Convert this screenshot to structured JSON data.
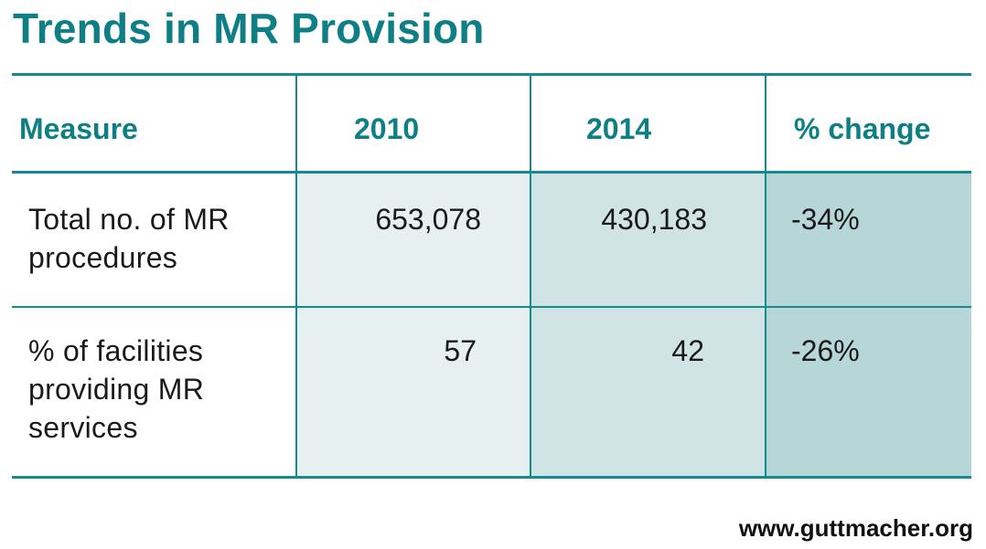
{
  "title": "Trends in MR Provision",
  "credit": "www.guttmacher.org",
  "colors": {
    "accent": "#0f7f86",
    "rule": "#168a91",
    "col_2010_bg": "#e6f0f1",
    "col_2014_bg": "#d0e3e5",
    "col_change_bg": "#b7d6d8"
  },
  "chart_data": {
    "type": "table",
    "title": "Trends in MR Provision",
    "columns": [
      "Measure",
      "2010",
      "2014",
      "% change"
    ],
    "rows": [
      {
        "measure": "Total no. of MR procedures",
        "y2010": "653,078",
        "y2014": "430,183",
        "change": "-34%"
      },
      {
        "measure": "% of facilities providing MR services",
        "y2010": "57",
        "y2014": "42",
        "change": "-26%"
      }
    ]
  }
}
